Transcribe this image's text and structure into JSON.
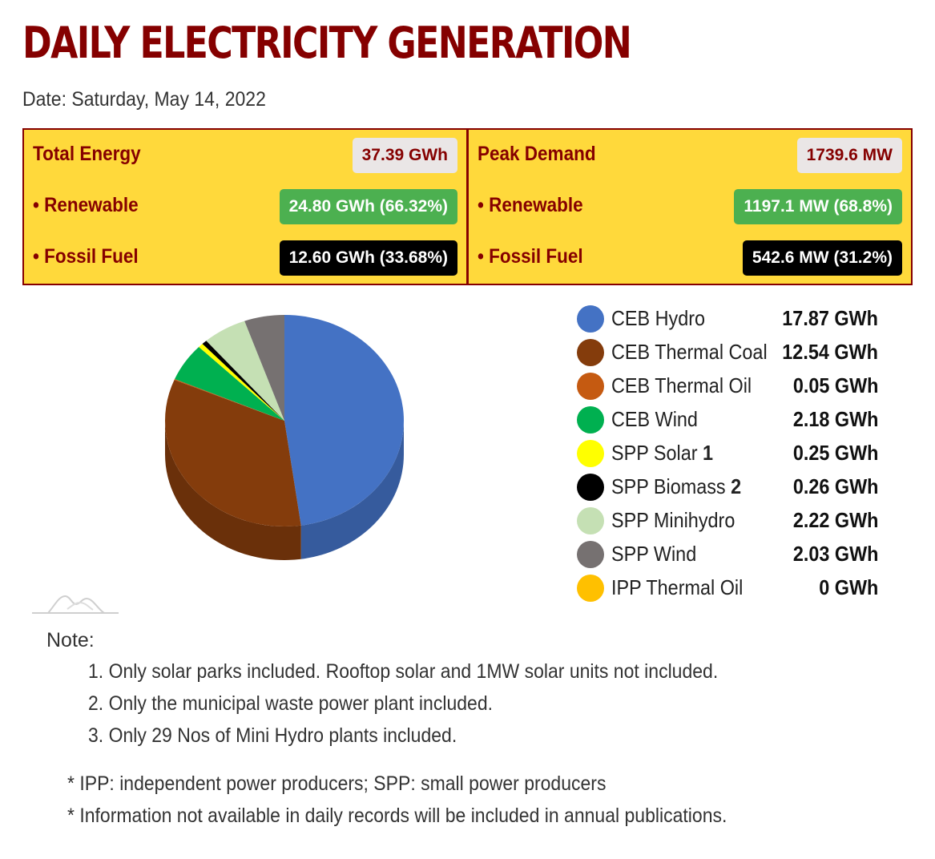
{
  "header": {
    "title": "DAILY ELECTRICITY GENERATION",
    "date_line": "Date: Saturday, May 14, 2022"
  },
  "summary": {
    "energy": {
      "rows": [
        {
          "label": "Total Energy",
          "value": "37.39 GWh"
        },
        {
          "label": "• Renewable",
          "value": "24.80 GWh (66.32%)"
        },
        {
          "label": "• Fossil Fuel",
          "value": "12.60 GWh (33.68%)"
        }
      ]
    },
    "demand": {
      "rows": [
        {
          "label": "Peak Demand",
          "value": "1739.6 MW"
        },
        {
          "label": "• Renewable",
          "value": "1197.1 MW (68.8%)"
        },
        {
          "label": "• Fossil Fuel",
          "value": "542.6 MW (31.2%)"
        }
      ]
    },
    "colors": {
      "accent": "#850000",
      "panel": "#ffd93b",
      "renewable": "#4cb050",
      "fossil": "#000000",
      "neutral": "#eae6e6"
    }
  },
  "chart_data": {
    "type": "pie",
    "unit": "GWh",
    "series": [
      {
        "name": "CEB Hydro",
        "sup": "",
        "value": 17.87,
        "label": "17.87 GWh",
        "color": "#4472c4"
      },
      {
        "name": "CEB Thermal Coal",
        "sup": "",
        "value": 12.54,
        "label": "12.54 GWh",
        "color": "#843c0c"
      },
      {
        "name": "CEB Thermal Oil",
        "sup": "",
        "value": 0.05,
        "label": "0.05 GWh",
        "color": "#c55a11"
      },
      {
        "name": "CEB Wind",
        "sup": "",
        "value": 2.18,
        "label": "2.18 GWh",
        "color": "#00b050"
      },
      {
        "name": "SPP Solar ",
        "sup": "1",
        "value": 0.25,
        "label": "0.25 GWh",
        "color": "#ffff00"
      },
      {
        "name": "SPP Biomass ",
        "sup": "2",
        "value": 0.26,
        "label": "0.26 GWh",
        "color": "#000000"
      },
      {
        "name": "SPP Minihydro",
        "sup": "",
        "value": 2.22,
        "label": "2.22 GWh",
        "color": "#c5e0b4"
      },
      {
        "name": "SPP Wind",
        "sup": "",
        "value": 2.03,
        "label": "2.03 GWh",
        "color": "#767171"
      },
      {
        "name": "IPP Thermal Oil",
        "sup": "",
        "value": 0,
        "label": "0 GWh",
        "color": "#ffc000"
      }
    ],
    "legend_position": "right",
    "style": "3d"
  },
  "notes": {
    "heading": "Note:",
    "items": [
      "1. Only solar parks included. Rooftop solar and 1MW solar units not included.",
      "2. Only the municipal waste power plant included.",
      "3. Only 29 Nos of Mini Hydro plants included."
    ],
    "footnotes": [
      "* IPP: independent power producers; SPP: small power producers",
      "* Information not available in daily records will be included in annual publications."
    ]
  }
}
